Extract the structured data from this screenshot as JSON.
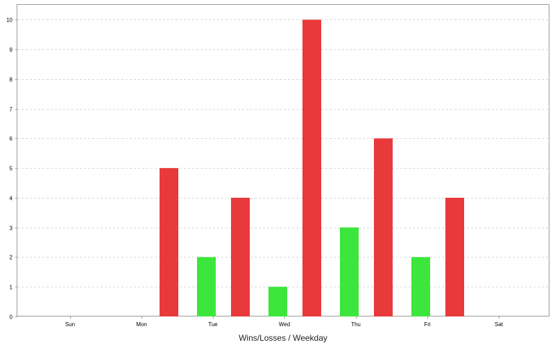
{
  "chart_data": {
    "type": "bar",
    "title": "",
    "xlabel": "Wins/Losses / Weekday",
    "ylabel": "",
    "categories": [
      "Sun",
      "Mon",
      "Tue",
      "Wed",
      "Thu",
      "Fri",
      "Sat"
    ],
    "series": [
      {
        "color": "#3ce63c",
        "values": [
          0,
          0,
          2,
          1,
          3,
          2,
          0
        ]
      },
      {
        "color": "#e8393b",
        "values": [
          0,
          5,
          4,
          10,
          6,
          4,
          0
        ]
      }
    ],
    "ylim": [
      0,
      10.5
    ],
    "yticks": [
      "0",
      "1",
      "2",
      "3",
      "4",
      "5",
      "6",
      "7",
      "8",
      "9",
      "10"
    ],
    "grid": true,
    "legend": "none"
  }
}
